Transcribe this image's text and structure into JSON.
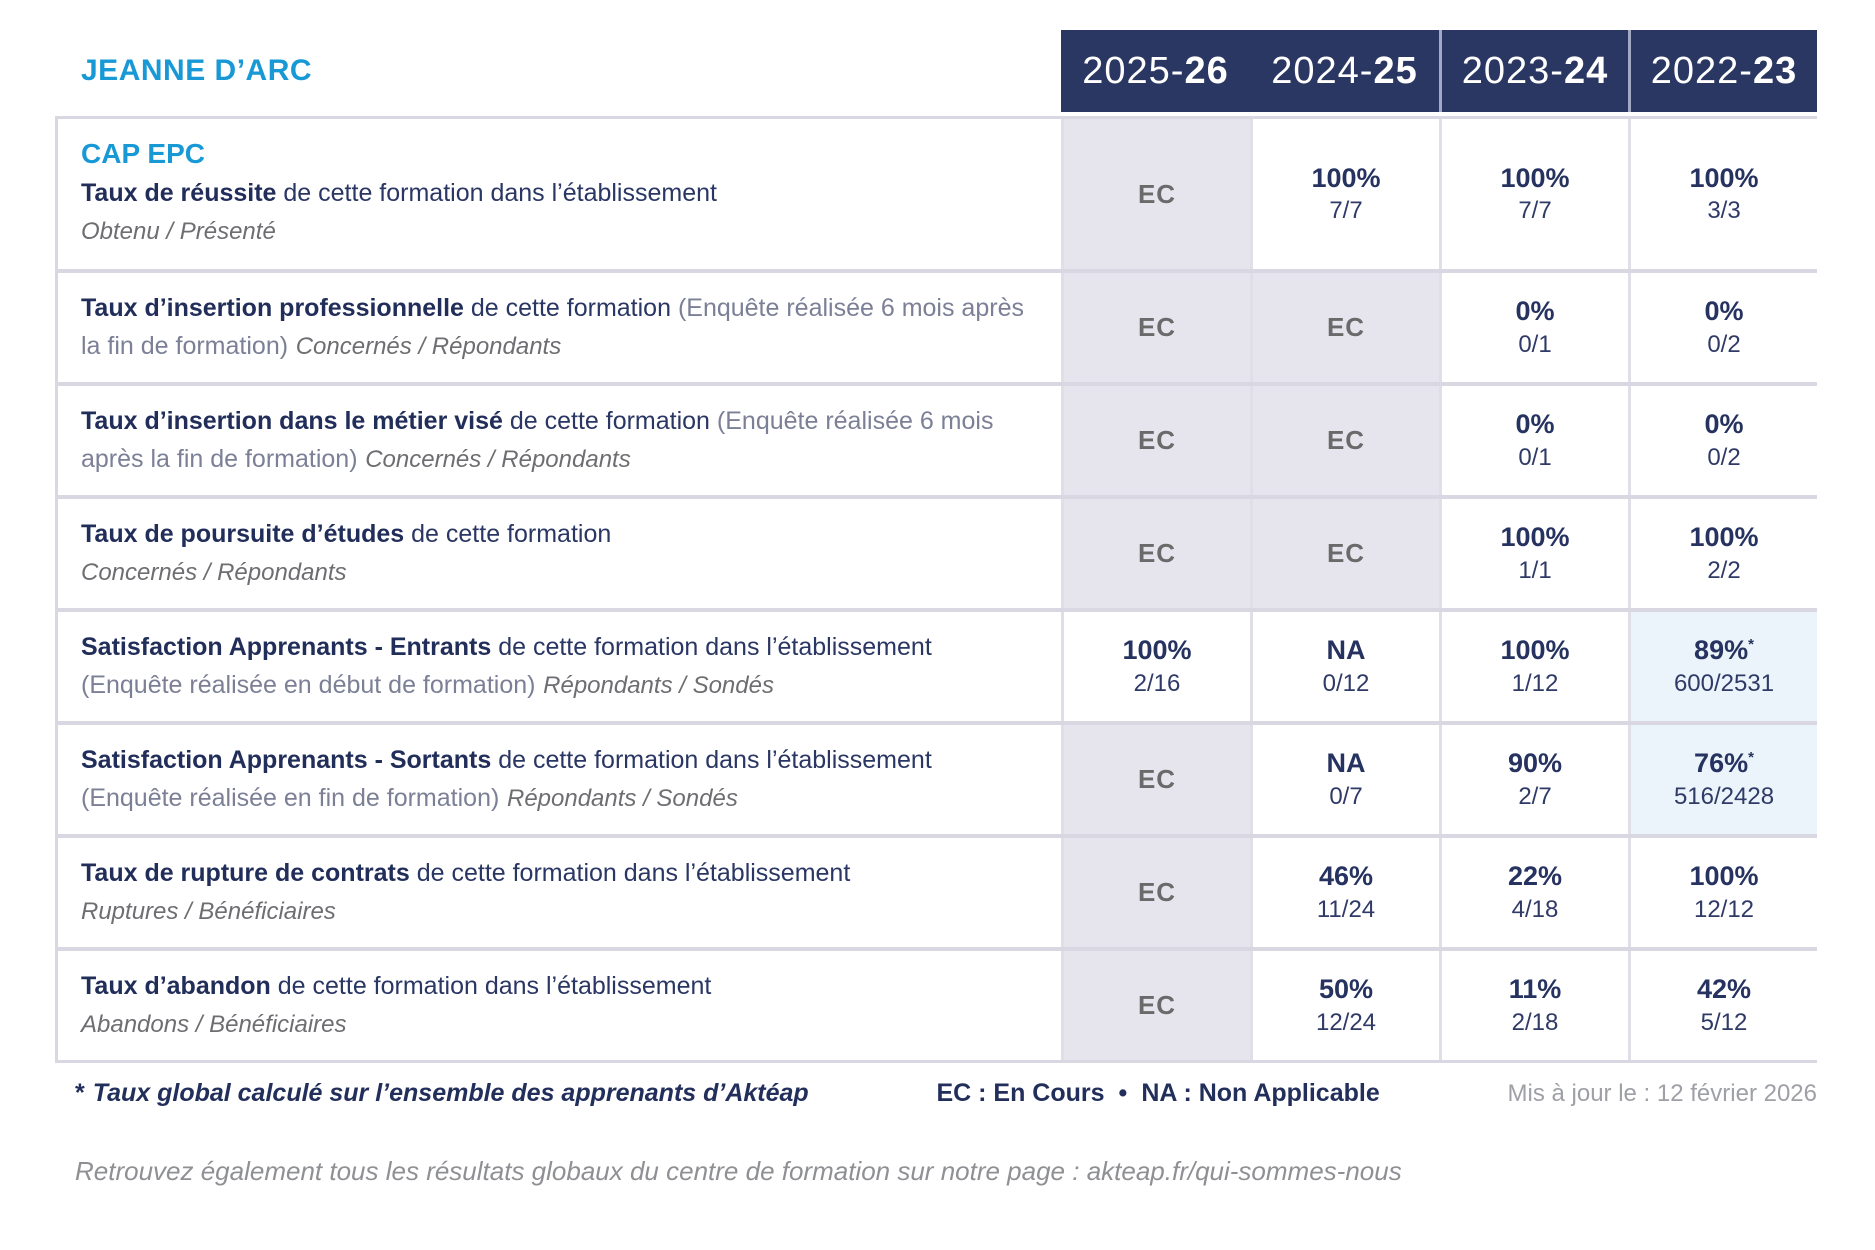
{
  "page": {
    "school_name": "JEANNE D’ARC",
    "years": [
      {
        "prefix": "2025-",
        "suffix": "26"
      },
      {
        "prefix": "2024-",
        "suffix": "25"
      },
      {
        "prefix": "2023-",
        "suffix": "24"
      },
      {
        "prefix": "2022-",
        "suffix": "23"
      }
    ],
    "rows": [
      {
        "heading": "CAP EPC",
        "name": "Taux de réussite",
        "desc": " de cette formation dans l’établissement",
        "paren": "",
        "sub": "Obtenu / Présenté",
        "sub_inline": false,
        "cells": [
          {
            "type": "ec",
            "text": "EC",
            "bg": "gray"
          },
          {
            "type": "value",
            "value": "100%",
            "fraction": "7/7"
          },
          {
            "type": "value",
            "value": "100%",
            "fraction": "7/7"
          },
          {
            "type": "value",
            "value": "100%",
            "fraction": "3/3"
          }
        ]
      },
      {
        "name": "Taux d’insertion professionnelle",
        "desc": " de cette formation",
        "paren": " (Enquête réalisée 6 mois après la fin de formation)",
        "sub": "Concernés / Répondants",
        "sub_inline": true,
        "cells": [
          {
            "type": "ec",
            "text": "EC",
            "bg": "gray"
          },
          {
            "type": "ec",
            "text": "EC",
            "bg": "gray"
          },
          {
            "type": "value",
            "value": "0%",
            "fraction": "0/1"
          },
          {
            "type": "value",
            "value": "0%",
            "fraction": "0/2"
          }
        ]
      },
      {
        "name": "Taux d’insertion dans le métier visé",
        "desc": " de cette formation",
        "paren": " (Enquête réalisée 6 mois après la fin de formation)",
        "sub": "Concernés / Répondants",
        "sub_inline": true,
        "cells": [
          {
            "type": "ec",
            "text": "EC",
            "bg": "gray"
          },
          {
            "type": "ec",
            "text": "EC",
            "bg": "gray"
          },
          {
            "type": "value",
            "value": "0%",
            "fraction": "0/1"
          },
          {
            "type": "value",
            "value": "0%",
            "fraction": "0/2"
          }
        ]
      },
      {
        "name": "Taux de poursuite d’études",
        "desc": " de cette formation",
        "paren": "",
        "sub": "Concernés / Répondants",
        "sub_inline": false,
        "cells": [
          {
            "type": "ec",
            "text": "EC",
            "bg": "gray"
          },
          {
            "type": "ec",
            "text": "EC",
            "bg": "gray"
          },
          {
            "type": "value",
            "value": "100%",
            "fraction": "1/1"
          },
          {
            "type": "value",
            "value": "100%",
            "fraction": "2/2"
          }
        ]
      },
      {
        "name": "Satisfaction Apprenants - Entrants",
        "desc": " de cette formation dans l’établissement",
        "paren": " (Enquête réalisée en début de formation)",
        "sub": "Répondants / Sondés",
        "sub_inline": true,
        "cells": [
          {
            "type": "value",
            "value": "100%",
            "fraction": "2/16"
          },
          {
            "type": "value",
            "value": "NA",
            "fraction": "0/12"
          },
          {
            "type": "value",
            "value": "100%",
            "fraction": "1/12"
          },
          {
            "type": "value",
            "value": "89%",
            "star": "*",
            "fraction": "600/2531",
            "bg": "blue"
          }
        ]
      },
      {
        "name": "Satisfaction Apprenants - Sortants",
        "desc": " de cette formation dans l’établissement",
        "paren": " (Enquête réalisée en fin de formation)",
        "sub": "Répondants / Sondés",
        "sub_inline": true,
        "cells": [
          {
            "type": "ec",
            "text": "EC",
            "bg": "gray"
          },
          {
            "type": "value",
            "value": "NA",
            "fraction": "0/7"
          },
          {
            "type": "value",
            "value": "90%",
            "fraction": "2/7"
          },
          {
            "type": "value",
            "value": "76%",
            "star": "*",
            "fraction": "516/2428",
            "bg": "blue"
          }
        ]
      },
      {
        "name": "Taux de rupture de contrats",
        "desc": " de cette formation dans l’établissement",
        "paren": "",
        "sub": "Ruptures / Bénéficiaires",
        "sub_inline": false,
        "cells": [
          {
            "type": "ec",
            "text": "EC",
            "bg": "gray"
          },
          {
            "type": "value",
            "value": "46%",
            "fraction": "11/24"
          },
          {
            "type": "value",
            "value": "22%",
            "fraction": "4/18"
          },
          {
            "type": "value",
            "value": "100%",
            "fraction": "12/12"
          }
        ]
      },
      {
        "name": "Taux d’abandon",
        "desc": " de cette formation dans l’établissement",
        "paren": "",
        "sub": "Abandons / Bénéficiaires",
        "sub_inline": false,
        "cells": [
          {
            "type": "ec",
            "text": "EC",
            "bg": "gray"
          },
          {
            "type": "value",
            "value": "50%",
            "fraction": "12/24"
          },
          {
            "type": "value",
            "value": "11%",
            "fraction": "2/18"
          },
          {
            "type": "value",
            "value": "42%",
            "fraction": "5/12"
          }
        ]
      }
    ],
    "footnote": {
      "star": "*",
      "text": "Taux global calculé sur l’ensemble des apprenants d’Aktéap",
      "legend_ec": "EC : En Cours",
      "legend_dot": "•",
      "legend_na": "NA : Non Applicable",
      "updated": "Mis à jour le : 12 février 2026"
    },
    "bottom_note": "Retrouvez également tous les résultats globaux du centre de formation sur notre page : akteap.fr/qui-sommes-nous",
    "colors": {
      "header_navy": "#2B3763",
      "accent_blue": "#1899D6",
      "text_navy": "#232F5B",
      "ec_gray": "#6A6A6A",
      "cell_gray_bg": "#E6E5EE",
      "cell_blue_bg": "#EBF4FA"
    }
  }
}
